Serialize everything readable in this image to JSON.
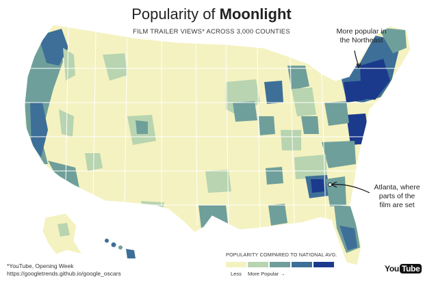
{
  "title": {
    "prefix": "Popularity of ",
    "film": "Moonlight"
  },
  "subtitle": "FILM TRAILER VIEWS* ACROSS 3,000 COUNTIES",
  "annotations": {
    "northeast": {
      "line1": "More popular in",
      "line2": "the Northeast"
    },
    "atlanta": {
      "line1": "Atlanta, where",
      "line2": "parts of the",
      "line3": "film are set"
    }
  },
  "legend": {
    "title": "POPULARITY COMPARED TO NATIONAL AVG.",
    "less_label": "Less",
    "more_label": "More Popular →",
    "colors": [
      "#f4f2c0",
      "#b8d4b0",
      "#6f9f9a",
      "#3d6f98",
      "#1b3a8c"
    ]
  },
  "footnote": {
    "line1": "*YouTube, Opening Week",
    "line2": "https://googletrends.github.io/google_oscars"
  },
  "logo": {
    "you": "You",
    "tube": "Tube"
  }
}
